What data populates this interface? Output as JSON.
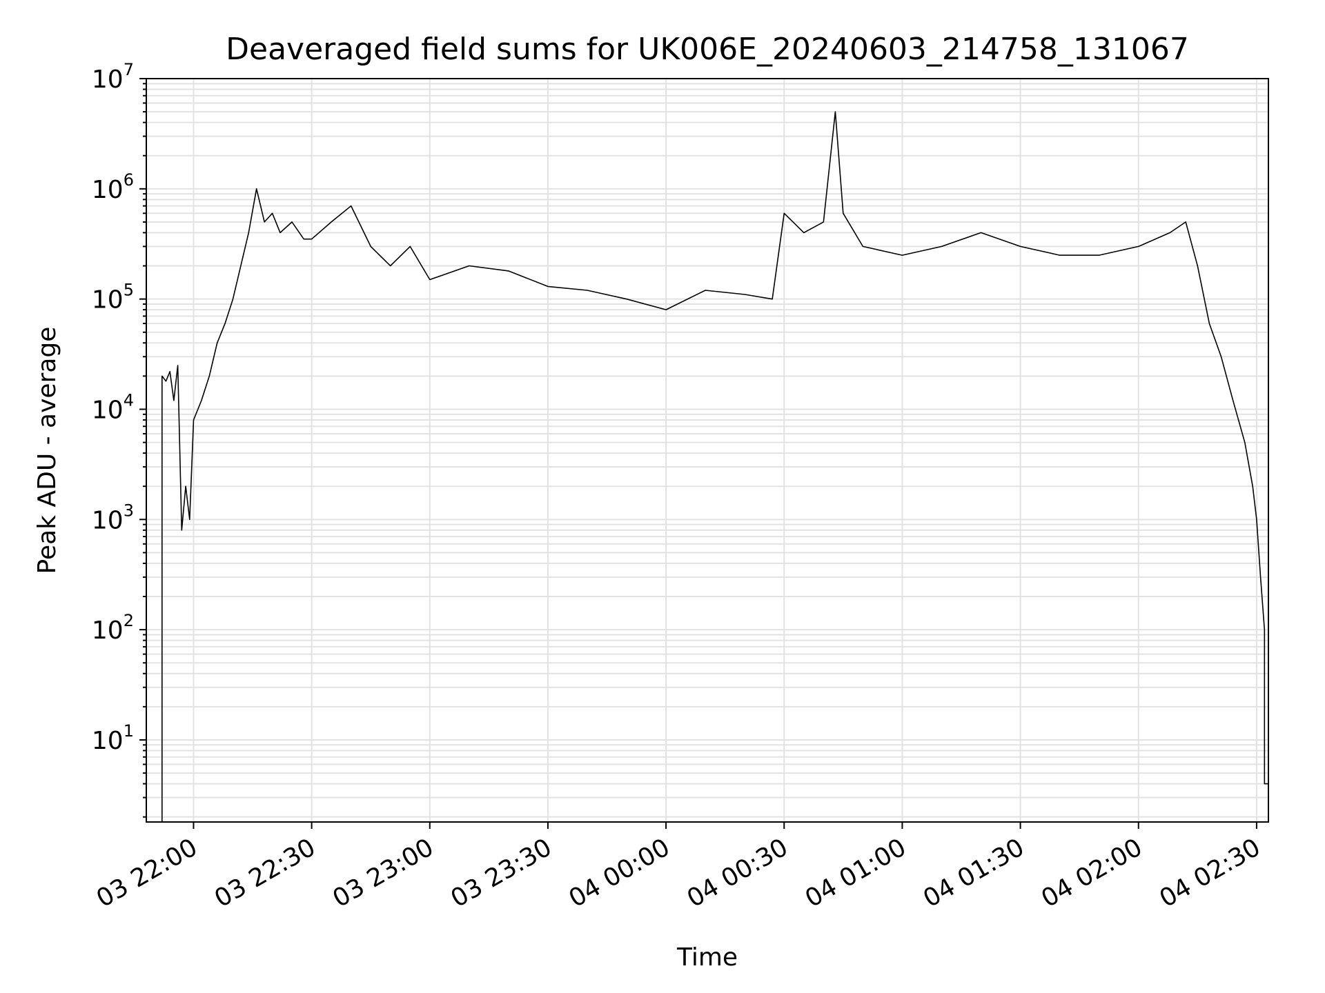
{
  "chart_data": {
    "type": "line",
    "title": "Deaveraged field sums for UK006E_20240603_214758_131067",
    "xlabel": "Time",
    "ylabel": "Peak ADU - average",
    "x_axis": {
      "type": "time",
      "range": [
        "2024-06-03 21:48",
        "2024-06-04 02:33"
      ],
      "tick_values": [
        "2024-06-03 22:00",
        "2024-06-03 22:30",
        "2024-06-03 23:00",
        "2024-06-03 23:30",
        "2024-06-04 00:00",
        "2024-06-04 00:30",
        "2024-06-04 01:00",
        "2024-06-04 01:30",
        "2024-06-04 02:00",
        "2024-06-04 02:30"
      ],
      "tick_labels": [
        "03 22:00",
        "03 22:30",
        "03 23:00",
        "03 23:30",
        "04 00:00",
        "04 00:30",
        "04 01:00",
        "04 01:30",
        "04 02:00",
        "04 02:30"
      ]
    },
    "y_axis": {
      "scale": "log",
      "range": [
        1.8,
        10000000
      ],
      "tick_values": [
        10,
        100,
        1000,
        10000,
        100000,
        1000000,
        10000000
      ],
      "tick_labels": [
        {
          "base": "10",
          "exp": "1"
        },
        {
          "base": "10",
          "exp": "2"
        },
        {
          "base": "10",
          "exp": "3"
        },
        {
          "base": "10",
          "exp": "4"
        },
        {
          "base": "10",
          "exp": "5"
        },
        {
          "base": "10",
          "exp": "6"
        },
        {
          "base": "10",
          "exp": "7"
        }
      ]
    },
    "grid": true,
    "line_color": "#000000",
    "series": [
      {
        "x": [
          "2024-06-03 21:52",
          "2024-06-03 21:52",
          "2024-06-03 21:53",
          "2024-06-03 21:54",
          "2024-06-03 21:55",
          "2024-06-03 21:56",
          "2024-06-03 21:57",
          "2024-06-03 21:58",
          "2024-06-03 21:59",
          "2024-06-03 22:00",
          "2024-06-03 22:02",
          "2024-06-03 22:04",
          "2024-06-03 22:06",
          "2024-06-03 22:08",
          "2024-06-03 22:10",
          "2024-06-03 22:12",
          "2024-06-03 22:14",
          "2024-06-03 22:16",
          "2024-06-03 22:18",
          "2024-06-03 22:20",
          "2024-06-03 22:22",
          "2024-06-03 22:25",
          "2024-06-03 22:28",
          "2024-06-03 22:30",
          "2024-06-03 22:35",
          "2024-06-03 22:40",
          "2024-06-03 22:45",
          "2024-06-03 22:50",
          "2024-06-03 22:55",
          "2024-06-03 23:00",
          "2024-06-03 23:10",
          "2024-06-03 23:20",
          "2024-06-03 23:30",
          "2024-06-03 23:40",
          "2024-06-03 23:50",
          "2024-06-04 00:00",
          "2024-06-04 00:10",
          "2024-06-04 00:20",
          "2024-06-04 00:27",
          "2024-06-04 00:30",
          "2024-06-04 00:35",
          "2024-06-04 00:40",
          "2024-06-04 00:43",
          "2024-06-04 00:45",
          "2024-06-04 00:50",
          "2024-06-04 01:00",
          "2024-06-04 01:10",
          "2024-06-04 01:20",
          "2024-06-04 01:30",
          "2024-06-04 01:40",
          "2024-06-04 01:50",
          "2024-06-04 02:00",
          "2024-06-04 02:08",
          "2024-06-04 02:12",
          "2024-06-04 02:15",
          "2024-06-04 02:18",
          "2024-06-04 02:21",
          "2024-06-04 02:24",
          "2024-06-04 02:27",
          "2024-06-04 02:29",
          "2024-06-04 02:30",
          "2024-06-04 02:31",
          "2024-06-04 02:32",
          "2024-06-04 02:32",
          "2024-06-04 02:33"
        ],
        "y": [
          1.8,
          20000,
          18000,
          22000,
          12000,
          25000,
          800,
          2000,
          1000,
          8000,
          12000,
          20000,
          40000,
          60000,
          100000,
          200000,
          400000,
          1000000,
          500000,
          600000,
          400000,
          500000,
          350000,
          350000,
          500000,
          700000,
          300000,
          200000,
          300000,
          150000,
          200000,
          180000,
          130000,
          120000,
          100000,
          80000,
          120000,
          110000,
          100000,
          600000,
          400000,
          500000,
          5000000,
          600000,
          300000,
          250000,
          300000,
          400000,
          300000,
          250000,
          250000,
          300000,
          400000,
          500000,
          200000,
          60000,
          30000,
          12000,
          5000,
          2000,
          1000,
          300,
          100,
          4,
          4
        ]
      }
    ]
  }
}
